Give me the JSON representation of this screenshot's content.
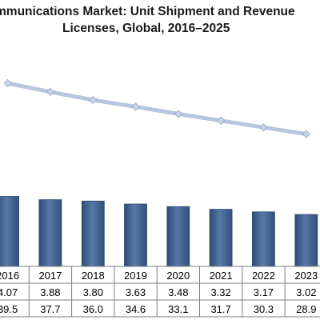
{
  "chart_data": {
    "type": "bar",
    "title_line1": "mmunications Market: Unit Shipment and Revenue",
    "title_line2": "Licenses, Global, 2016–2025",
    "categories": [
      "2016",
      "2017",
      "2018",
      "2019",
      "2020",
      "2021",
      "2022",
      "2023"
    ],
    "category_labels_shown": [
      "2016",
      "2017",
      "2018",
      "2019",
      "2020",
      "2021",
      "2022",
      "2023"
    ],
    "series": [
      {
        "kind": "bar",
        "values": [
          4.07,
          3.88,
          3.8,
          3.63,
          3.48,
          3.32,
          3.17,
          3.02
        ]
      },
      {
        "kind": "line",
        "values": [
          39.5,
          37.7,
          36.0,
          34.6,
          33.1,
          31.7,
          30.3,
          28.9
        ]
      }
    ],
    "table_rows": [
      [
        "4.07",
        "3.88",
        "3.80",
        "3.63",
        "3.48",
        "3.32",
        "3.17",
        "3.02"
      ],
      [
        "39.5",
        "37.7",
        "36.0",
        "34.6",
        "33.1",
        "31.7",
        "30.3",
        "28.9"
      ]
    ],
    "colors": {
      "bar": "#4f6f9e",
      "bar_dark": "#2f4b73",
      "line": "#b7c6dc",
      "marker": "#c9d5e6"
    },
    "grid": false,
    "legend": "none"
  }
}
